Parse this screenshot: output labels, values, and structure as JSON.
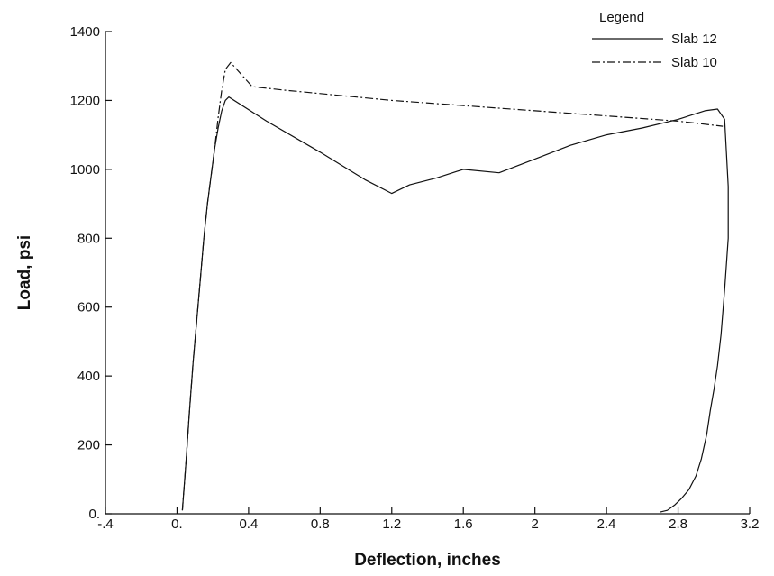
{
  "chart_data": {
    "type": "line",
    "xlabel": "Deflection, inches",
    "ylabel": "Load, psi",
    "xlim": [
      -0.4,
      3.2
    ],
    "ylim": [
      0,
      1400
    ],
    "x_ticks": [
      -0.4,
      0.0,
      0.4,
      0.8,
      1.2,
      1.6,
      2.0,
      2.4,
      2.8,
      3.2
    ],
    "x_tick_labels": [
      "-.4",
      "0.",
      "0.4",
      "0.8",
      "1.2",
      "1.6",
      "2",
      "2.4",
      "2.8",
      "3.2"
    ],
    "y_ticks": [
      0,
      200,
      400,
      600,
      800,
      1000,
      1200,
      1400
    ],
    "y_tick_labels": [
      "0.",
      "200",
      "400",
      "600",
      "800",
      "1000",
      "1200",
      "1400"
    ],
    "grid": false,
    "legend": {
      "title": "Legend",
      "placement": "top-right",
      "entries": [
        "Slab 12",
        "Slab 10"
      ]
    },
    "series": [
      {
        "name": "Slab 12",
        "style": "solid",
        "x": [
          0.03,
          0.05,
          0.07,
          0.09,
          0.11,
          0.13,
          0.15,
          0.17,
          0.19,
          0.21,
          0.23,
          0.25,
          0.27,
          0.29,
          0.5,
          0.8,
          1.05,
          1.2,
          1.3,
          1.45,
          1.6,
          1.8,
          2.0,
          2.2,
          2.4,
          2.6,
          2.8,
          2.95,
          3.02,
          3.06,
          3.08,
          3.08,
          3.06,
          3.04,
          3.02,
          3.0,
          2.98,
          2.96,
          2.93,
          2.9,
          2.86,
          2.82,
          2.78,
          2.74,
          2.7
        ],
        "y": [
          10,
          150,
          300,
          440,
          560,
          680,
          800,
          900,
          980,
          1060,
          1120,
          1170,
          1200,
          1210,
          1140,
          1050,
          970,
          930,
          955,
          975,
          1000,
          990,
          1030,
          1070,
          1100,
          1120,
          1145,
          1170,
          1175,
          1145,
          950,
          800,
          650,
          520,
          430,
          360,
          300,
          230,
          160,
          110,
          70,
          45,
          25,
          10,
          5
        ]
      },
      {
        "name": "Slab 10",
        "style": "dash-dot",
        "x": [
          0.03,
          0.05,
          0.07,
          0.09,
          0.11,
          0.13,
          0.15,
          0.17,
          0.19,
          0.21,
          0.23,
          0.25,
          0.27,
          0.3,
          0.42,
          0.6,
          1.2,
          2.0,
          2.8,
          3.05
        ],
        "y": [
          10,
          150,
          300,
          440,
          560,
          680,
          800,
          900,
          980,
          1060,
          1150,
          1230,
          1290,
          1310,
          1240,
          1230,
          1200,
          1170,
          1140,
          1125
        ]
      }
    ]
  }
}
